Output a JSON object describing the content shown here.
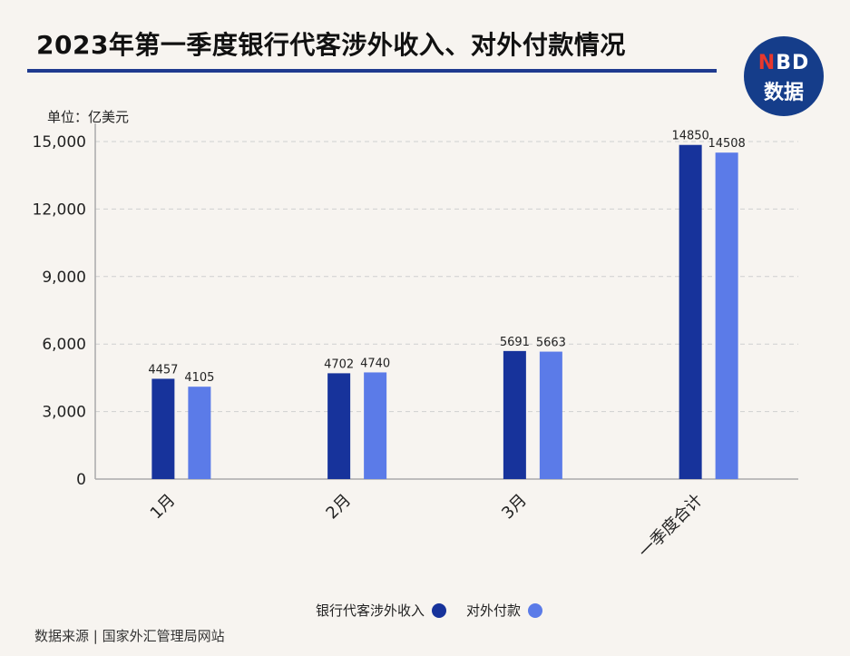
{
  "header": {
    "title": "2023年第一季度银行代客涉外收入、对外付款情况",
    "logo_top": "NBD",
    "logo_bottom": "数据"
  },
  "unit_label": "单位：亿美元",
  "source": "数据来源 | 国家外汇管理局网站",
  "colors": {
    "income": "#17339b",
    "payment": "#5b7be8",
    "accent": "#1f3a8f"
  },
  "chart_data": {
    "type": "bar",
    "categories": [
      "1月",
      "2月",
      "3月",
      "一季度合计"
    ],
    "series": [
      {
        "name": "银行代客涉外收入",
        "values": [
          4457,
          4702,
          5691,
          14850
        ]
      },
      {
        "name": "对外付款",
        "values": [
          4105,
          4740,
          5663,
          14508
        ]
      }
    ],
    "ylim": [
      0,
      15000
    ],
    "yticks": [
      0,
      3000,
      6000,
      9000,
      12000,
      15000
    ],
    "ytick_labels": [
      "0",
      "3,000",
      "6,000",
      "9,000",
      "12,000",
      "15,000"
    ],
    "grid": true,
    "legend_position": "bottom"
  }
}
